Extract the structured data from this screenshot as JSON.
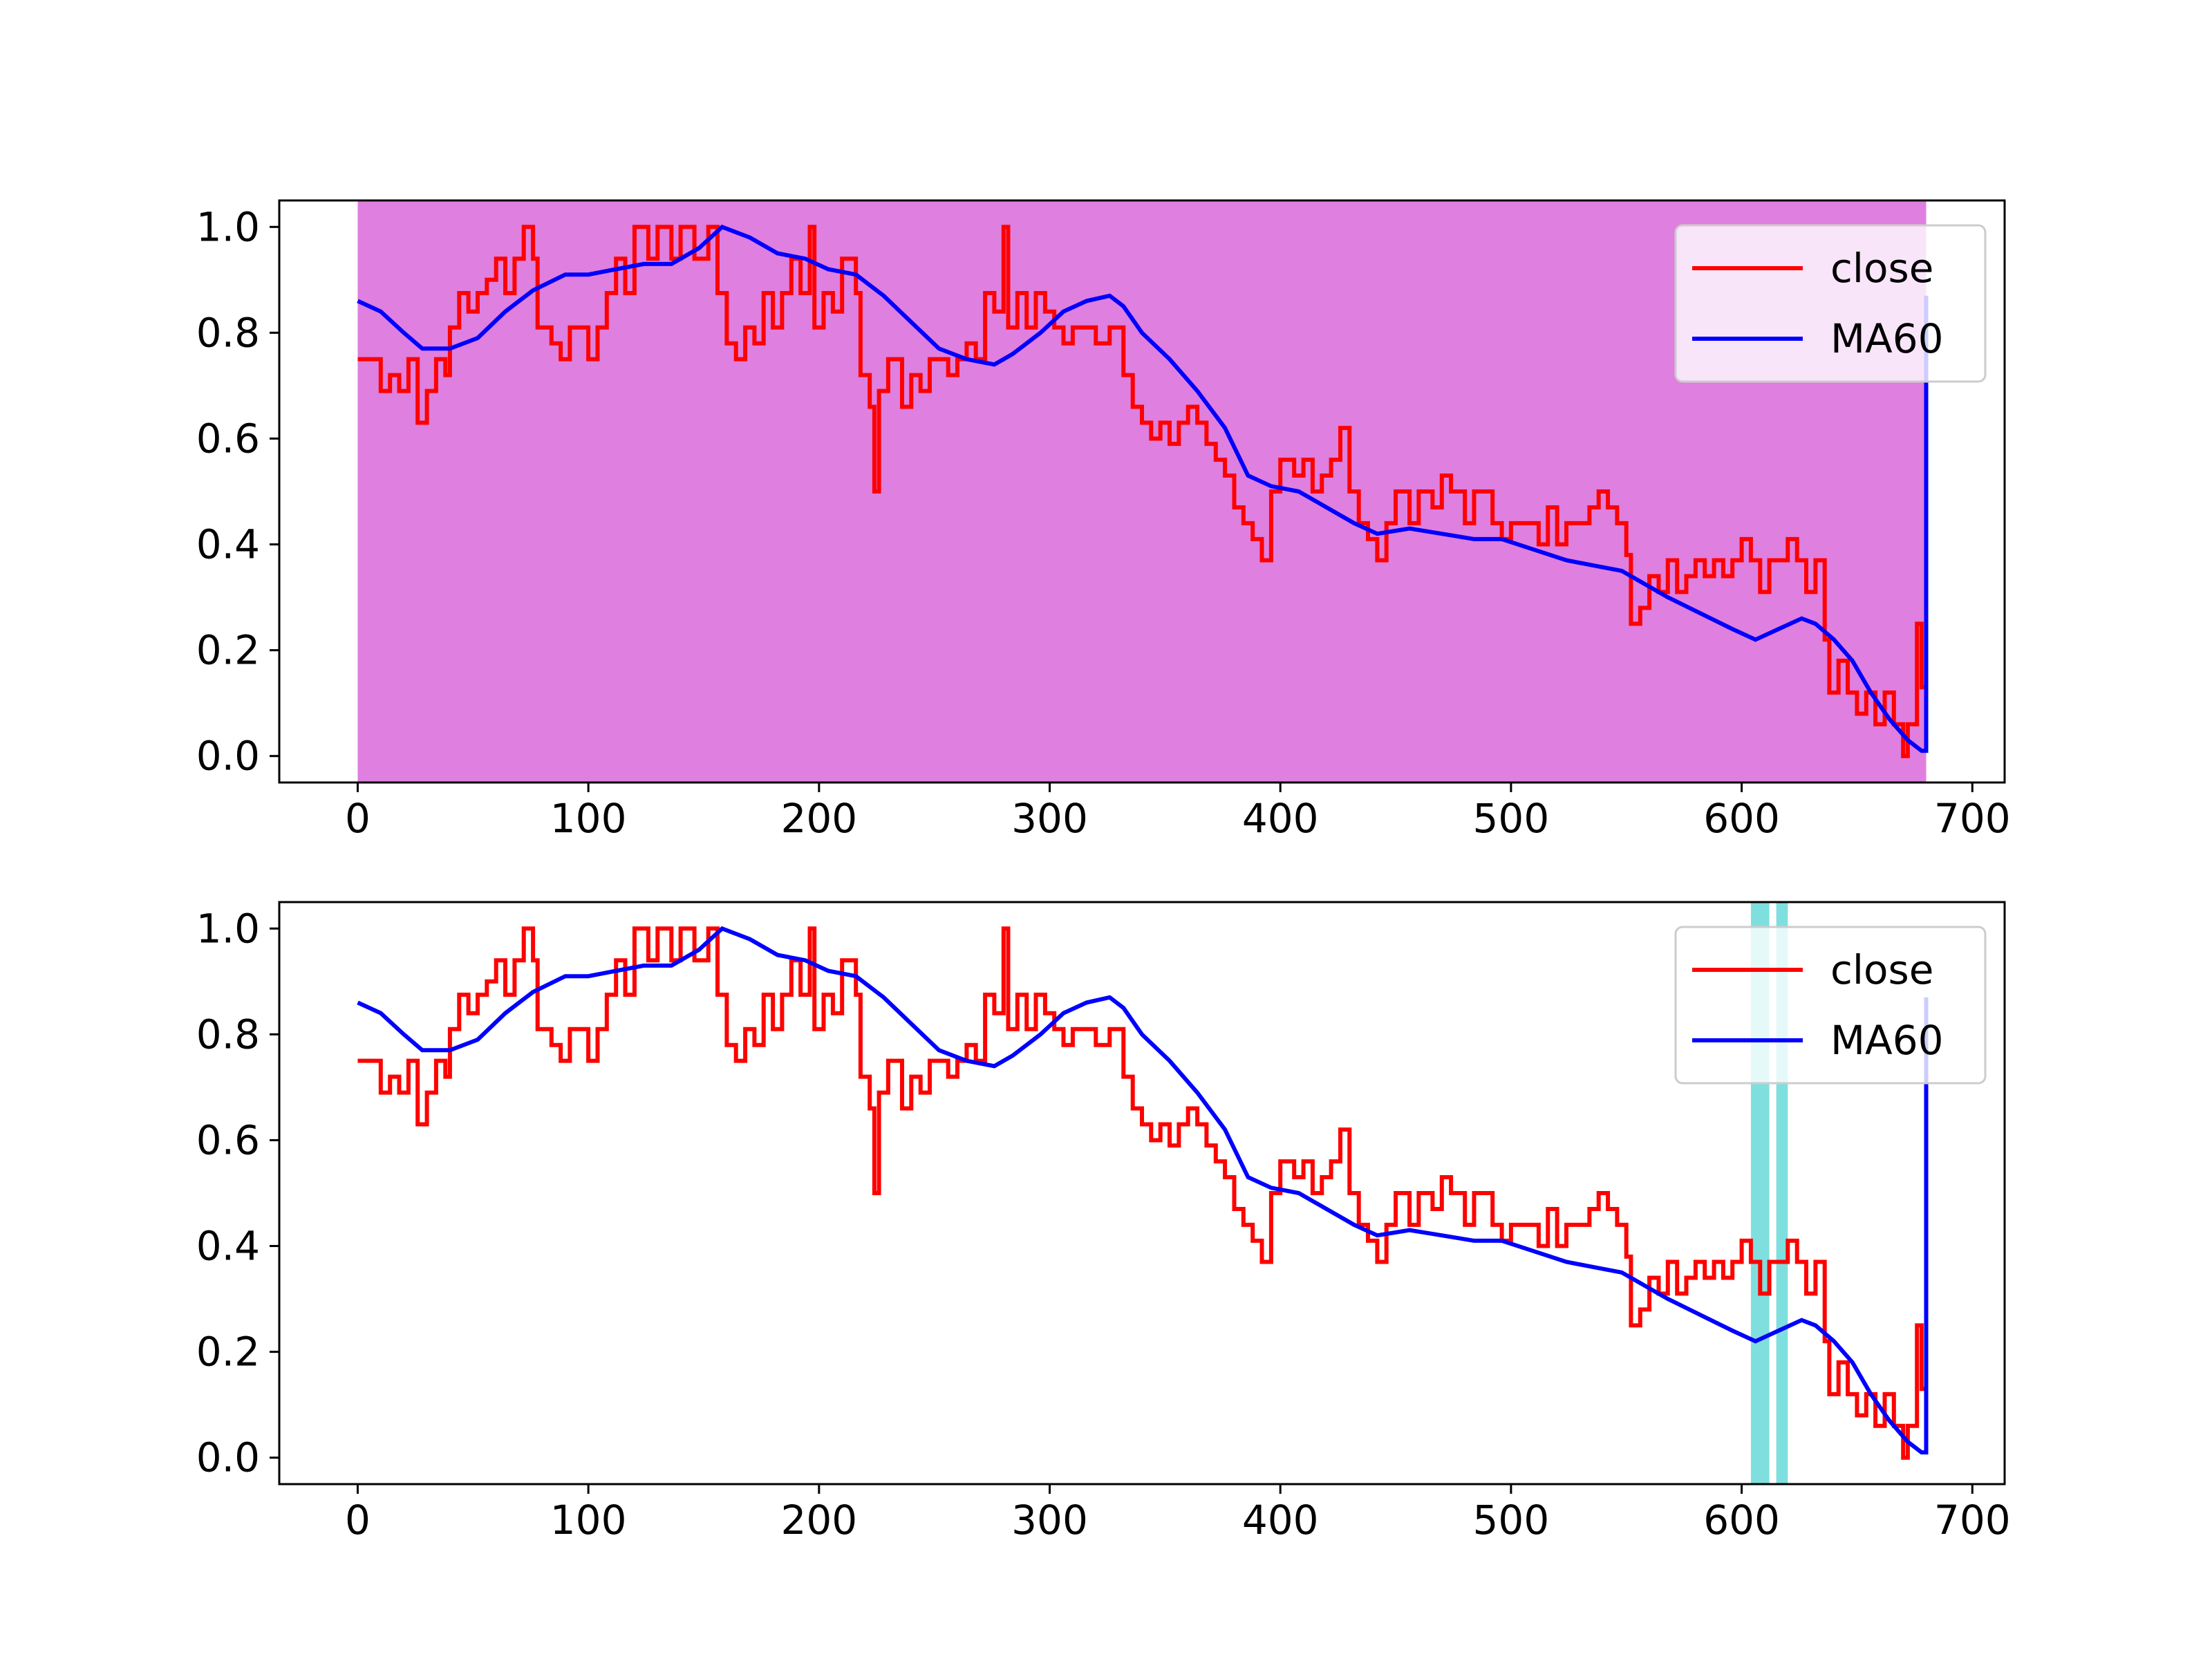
{
  "chart_data": [
    {
      "type": "line",
      "background_span": {
        "x": [
          0,
          680
        ],
        "color": "#DF7FDF"
      },
      "xlim": [
        -34,
        714
      ],
      "ylim": [
        -0.05,
        1.05
      ],
      "xticks": [
        0,
        100,
        200,
        300,
        400,
        500,
        600,
        700
      ],
      "yticks": [
        "0.0",
        "0.2",
        "0.4",
        "0.6",
        "0.8",
        "1.0"
      ],
      "legend": {
        "position": "top-right",
        "entries": [
          "close",
          "MA60"
        ]
      },
      "series": [
        {
          "name": "close",
          "color": "#FF0000",
          "style": "step",
          "points": [
            [
              0,
              0.75
            ],
            [
              8,
              0.75
            ],
            [
              10,
              0.69
            ],
            [
              14,
              0.72
            ],
            [
              18,
              0.69
            ],
            [
              22,
              0.75
            ],
            [
              26,
              0.63
            ],
            [
              30,
              0.69
            ],
            [
              34,
              0.75
            ],
            [
              38,
              0.72
            ],
            [
              40,
              0.81
            ],
            [
              44,
              0.875
            ],
            [
              48,
              0.84
            ],
            [
              52,
              0.875
            ],
            [
              56,
              0.9
            ],
            [
              60,
              0.94
            ],
            [
              64,
              0.875
            ],
            [
              68,
              0.94
            ],
            [
              72,
              1.0
            ],
            [
              76,
              0.94
            ],
            [
              78,
              0.81
            ],
            [
              84,
              0.78
            ],
            [
              88,
              0.75
            ],
            [
              92,
              0.81
            ],
            [
              96,
              0.81
            ],
            [
              100,
              0.75
            ],
            [
              104,
              0.81
            ],
            [
              108,
              0.875
            ],
            [
              112,
              0.94
            ],
            [
              116,
              0.875
            ],
            [
              120,
              1.0
            ],
            [
              126,
              0.94
            ],
            [
              130,
              1.0
            ],
            [
              136,
              0.94
            ],
            [
              140,
              1.0
            ],
            [
              146,
              0.94
            ],
            [
              152,
              1.0
            ],
            [
              156,
              0.875
            ],
            [
              160,
              0.78
            ],
            [
              164,
              0.75
            ],
            [
              168,
              0.81
            ],
            [
              172,
              0.78
            ],
            [
              176,
              0.875
            ],
            [
              180,
              0.81
            ],
            [
              184,
              0.875
            ],
            [
              188,
              0.94
            ],
            [
              192,
              0.875
            ],
            [
              196,
              1.0
            ],
            [
              198,
              0.81
            ],
            [
              202,
              0.875
            ],
            [
              206,
              0.84
            ],
            [
              210,
              0.94
            ],
            [
              216,
              0.875
            ],
            [
              218,
              0.72
            ],
            [
              222,
              0.66
            ],
            [
              224,
              0.5
            ],
            [
              226,
              0.69
            ],
            [
              230,
              0.75
            ],
            [
              236,
              0.66
            ],
            [
              240,
              0.72
            ],
            [
              244,
              0.69
            ],
            [
              248,
              0.75
            ],
            [
              252,
              0.75
            ],
            [
              256,
              0.72
            ],
            [
              260,
              0.75
            ],
            [
              264,
              0.78
            ],
            [
              268,
              0.75
            ],
            [
              272,
              0.875
            ],
            [
              276,
              0.84
            ],
            [
              280,
              1.0
            ],
            [
              282,
              0.81
            ],
            [
              286,
              0.875
            ],
            [
              290,
              0.81
            ],
            [
              294,
              0.875
            ],
            [
              298,
              0.84
            ],
            [
              302,
              0.81
            ],
            [
              306,
              0.78
            ],
            [
              310,
              0.81
            ],
            [
              316,
              0.81
            ],
            [
              320,
              0.78
            ],
            [
              326,
              0.81
            ],
            [
              332,
              0.72
            ],
            [
              336,
              0.66
            ],
            [
              340,
              0.63
            ],
            [
              344,
              0.6
            ],
            [
              348,
              0.63
            ],
            [
              352,
              0.59
            ],
            [
              356,
              0.63
            ],
            [
              360,
              0.66
            ],
            [
              364,
              0.63
            ],
            [
              368,
              0.59
            ],
            [
              372,
              0.56
            ],
            [
              376,
              0.53
            ],
            [
              380,
              0.47
            ],
            [
              384,
              0.44
            ],
            [
              388,
              0.41
            ],
            [
              392,
              0.37
            ],
            [
              396,
              0.5
            ],
            [
              400,
              0.56
            ],
            [
              406,
              0.53
            ],
            [
              410,
              0.56
            ],
            [
              414,
              0.5
            ],
            [
              418,
              0.53
            ],
            [
              422,
              0.56
            ],
            [
              426,
              0.62
            ],
            [
              430,
              0.5
            ],
            [
              434,
              0.44
            ],
            [
              438,
              0.41
            ],
            [
              442,
              0.37
            ],
            [
              446,
              0.44
            ],
            [
              450,
              0.5
            ],
            [
              456,
              0.44
            ],
            [
              460,
              0.5
            ],
            [
              466,
              0.47
            ],
            [
              470,
              0.53
            ],
            [
              474,
              0.5
            ],
            [
              480,
              0.44
            ],
            [
              484,
              0.5
            ],
            [
              488,
              0.5
            ],
            [
              492,
              0.44
            ],
            [
              496,
              0.41
            ],
            [
              500,
              0.44
            ],
            [
              508,
              0.44
            ],
            [
              512,
              0.4
            ],
            [
              516,
              0.47
            ],
            [
              520,
              0.4
            ],
            [
              524,
              0.44
            ],
            [
              530,
              0.44
            ],
            [
              534,
              0.47
            ],
            [
              538,
              0.5
            ],
            [
              542,
              0.47
            ],
            [
              546,
              0.44
            ],
            [
              550,
              0.38
            ],
            [
              552,
              0.25
            ],
            [
              556,
              0.28
            ],
            [
              560,
              0.34
            ],
            [
              564,
              0.31
            ],
            [
              568,
              0.37
            ],
            [
              572,
              0.31
            ],
            [
              576,
              0.34
            ],
            [
              580,
              0.37
            ],
            [
              584,
              0.34
            ],
            [
              588,
              0.37
            ],
            [
              592,
              0.34
            ],
            [
              596,
              0.37
            ],
            [
              600,
              0.41
            ],
            [
              604,
              0.37
            ],
            [
              608,
              0.31
            ],
            [
              612,
              0.37
            ],
            [
              616,
              0.37
            ],
            [
              620,
              0.41
            ],
            [
              624,
              0.37
            ],
            [
              628,
              0.31
            ],
            [
              632,
              0.37
            ],
            [
              636,
              0.22
            ],
            [
              638,
              0.12
            ],
            [
              642,
              0.18
            ],
            [
              646,
              0.12
            ],
            [
              650,
              0.08
            ],
            [
              654,
              0.12
            ],
            [
              658,
              0.06
            ],
            [
              662,
              0.12
            ],
            [
              666,
              0.06
            ],
            [
              670,
              0.0
            ],
            [
              672,
              0.06
            ],
            [
              676,
              0.25
            ],
            [
              678,
              0.13
            ],
            [
              680,
              0.13
            ]
          ]
        },
        {
          "name": "MA60",
          "color": "#0000FF",
          "style": "line",
          "points": [
            [
              0,
              0.86
            ],
            [
              10,
              0.84
            ],
            [
              20,
              0.8
            ],
            [
              28,
              0.77
            ],
            [
              40,
              0.77
            ],
            [
              52,
              0.79
            ],
            [
              64,
              0.84
            ],
            [
              76,
              0.88
            ],
            [
              90,
              0.91
            ],
            [
              100,
              0.91
            ],
            [
              112,
              0.92
            ],
            [
              124,
              0.93
            ],
            [
              136,
              0.93
            ],
            [
              148,
              0.96
            ],
            [
              158,
              1.0
            ],
            [
              170,
              0.98
            ],
            [
              182,
              0.95
            ],
            [
              194,
              0.94
            ],
            [
              204,
              0.92
            ],
            [
              216,
              0.91
            ],
            [
              228,
              0.87
            ],
            [
              240,
              0.82
            ],
            [
              252,
              0.77
            ],
            [
              264,
              0.75
            ],
            [
              276,
              0.74
            ],
            [
              284,
              0.76
            ],
            [
              296,
              0.8
            ],
            [
              306,
              0.84
            ],
            [
              316,
              0.86
            ],
            [
              326,
              0.87
            ],
            [
              332,
              0.85
            ],
            [
              340,
              0.8
            ],
            [
              352,
              0.75
            ],
            [
              364,
              0.69
            ],
            [
              376,
              0.62
            ],
            [
              386,
              0.53
            ],
            [
              396,
              0.51
            ],
            [
              408,
              0.5
            ],
            [
              420,
              0.47
            ],
            [
              432,
              0.44
            ],
            [
              442,
              0.42
            ],
            [
              456,
              0.43
            ],
            [
              470,
              0.42
            ],
            [
              484,
              0.41
            ],
            [
              496,
              0.41
            ],
            [
              510,
              0.39
            ],
            [
              524,
              0.37
            ],
            [
              536,
              0.36
            ],
            [
              548,
              0.35
            ],
            [
              556,
              0.33
            ],
            [
              568,
              0.3
            ],
            [
              582,
              0.27
            ],
            [
              596,
              0.24
            ],
            [
              606,
              0.22
            ],
            [
              616,
              0.24
            ],
            [
              626,
              0.26
            ],
            [
              632,
              0.25
            ],
            [
              640,
              0.22
            ],
            [
              648,
              0.18
            ],
            [
              656,
              0.12
            ],
            [
              664,
              0.07
            ],
            [
              672,
              0.03
            ],
            [
              678,
              0.01
            ],
            [
              680,
              0.01
            ],
            [
              680,
              0.87
            ]
          ]
        }
      ]
    },
    {
      "type": "line",
      "highlight_spans": [
        {
          "x": [
            604,
            612
          ],
          "color": "#7FDFDF"
        },
        {
          "x": [
            615,
            620
          ],
          "color": "#7FDFDF"
        }
      ],
      "xlim": [
        -34,
        714
      ],
      "ylim": [
        -0.05,
        1.05
      ],
      "xticks": [
        0,
        100,
        200,
        300,
        400,
        500,
        600,
        700
      ],
      "yticks": [
        "0.0",
        "0.2",
        "0.4",
        "0.6",
        "0.8",
        "1.0"
      ],
      "legend": {
        "position": "top-right",
        "entries": [
          "close",
          "MA60"
        ]
      },
      "same_series_as": 0
    }
  ]
}
